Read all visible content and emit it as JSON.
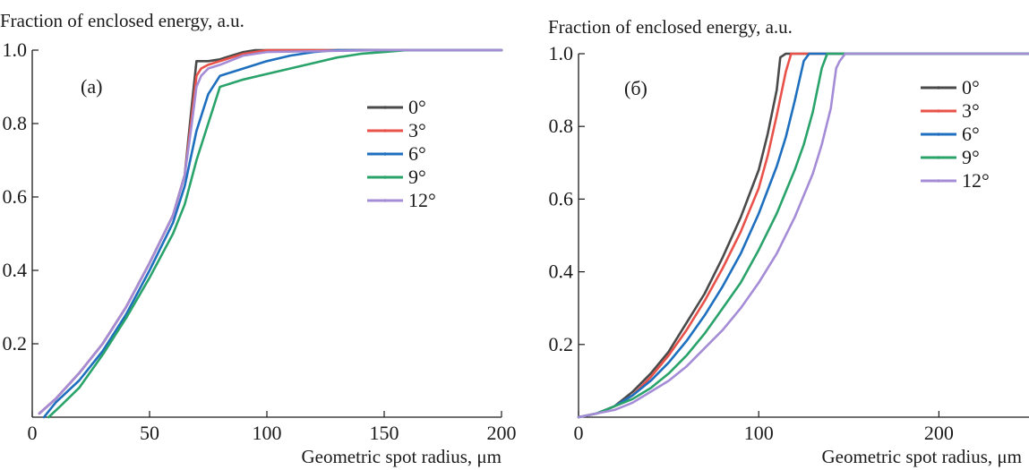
{
  "chart_data": [
    {
      "type": "line",
      "panel_label": "(a)",
      "ylabel": "Fraction of enclosed energy, a.u.",
      "xlabel": "Geometric spot radius, μm",
      "xlim": [
        0,
        200
      ],
      "ylim": [
        0,
        1.0
      ],
      "x_ticks": [
        0,
        50,
        100,
        150,
        200
      ],
      "x_tick_labels": [
        "0",
        "50",
        "100",
        "150",
        "200"
      ],
      "y_ticks": [
        0.2,
        0.4,
        0.6,
        0.8,
        1.0
      ],
      "y_tick_labels": [
        "0.2",
        "0.4",
        "0.6",
        "0.8",
        "1.0"
      ],
      "legend_position": "right",
      "series": [
        {
          "name": "0°",
          "color": "#4a4a4a",
          "x": [
            3,
            10,
            20,
            30,
            40,
            50,
            60,
            65,
            68,
            70,
            72,
            75,
            80,
            85,
            90,
            95,
            100,
            150,
            200
          ],
          "y": [
            0.01,
            0.05,
            0.12,
            0.2,
            0.3,
            0.42,
            0.55,
            0.66,
            0.85,
            0.97,
            0.97,
            0.97,
            0.975,
            0.985,
            0.995,
            1.0,
            1.0,
            1.0,
            1.0
          ]
        },
        {
          "name": "3°",
          "color": "#e8524a",
          "x": [
            3,
            10,
            20,
            30,
            40,
            50,
            60,
            65,
            68,
            70,
            72,
            75,
            80,
            90,
            100,
            150,
            200
          ],
          "y": [
            0.01,
            0.05,
            0.12,
            0.2,
            0.3,
            0.42,
            0.55,
            0.66,
            0.82,
            0.93,
            0.95,
            0.96,
            0.97,
            0.99,
            1.0,
            1.0,
            1.0
          ]
        },
        {
          "name": "6°",
          "color": "#1f6fbf",
          "x": [
            5,
            10,
            20,
            30,
            40,
            50,
            60,
            65,
            70,
            75,
            80,
            85,
            90,
            100,
            110,
            120,
            130,
            150,
            200
          ],
          "y": [
            0.0,
            0.04,
            0.1,
            0.18,
            0.28,
            0.4,
            0.53,
            0.63,
            0.78,
            0.88,
            0.93,
            0.94,
            0.95,
            0.97,
            0.985,
            0.995,
            1.0,
            1.0,
            1.0
          ]
        },
        {
          "name": "9°",
          "color": "#2aa36b",
          "x": [
            7,
            12,
            20,
            30,
            40,
            50,
            60,
            65,
            70,
            75,
            80,
            90,
            100,
            110,
            120,
            130,
            140,
            150,
            160,
            200
          ],
          "y": [
            0.0,
            0.03,
            0.08,
            0.17,
            0.27,
            0.38,
            0.5,
            0.58,
            0.7,
            0.8,
            0.9,
            0.92,
            0.935,
            0.95,
            0.965,
            0.98,
            0.99,
            0.995,
            1.0,
            1.0
          ]
        },
        {
          "name": "12°",
          "color": "#a58cd6",
          "x": [
            3,
            10,
            20,
            30,
            40,
            50,
            60,
            65,
            68,
            70,
            72,
            75,
            80,
            90,
            100,
            150,
            200
          ],
          "y": [
            0.01,
            0.05,
            0.12,
            0.2,
            0.3,
            0.42,
            0.55,
            0.66,
            0.8,
            0.9,
            0.93,
            0.95,
            0.96,
            0.985,
            0.995,
            1.0,
            1.0
          ]
        }
      ]
    },
    {
      "type": "line",
      "panel_label": "(б)",
      "ylabel": "Fraction of enclosed energy, a.u.",
      "xlabel": "Geometric spot radius, μm",
      "xlim": [
        0,
        250
      ],
      "ylim": [
        0,
        1.0
      ],
      "x_ticks": [
        0,
        100,
        200
      ],
      "x_tick_labels": [
        "0",
        "100",
        "200"
      ],
      "y_ticks": [
        0.2,
        0.4,
        0.6,
        0.8,
        1.0
      ],
      "y_tick_labels": [
        "0.2",
        "0.4",
        "0.6",
        "0.8",
        "1.0"
      ],
      "legend_position": "top-right",
      "series": [
        {
          "name": "0°",
          "color": "#4a4a4a",
          "x": [
            0,
            10,
            20,
            30,
            40,
            50,
            60,
            70,
            80,
            90,
            100,
            105,
            110,
            112,
            115,
            120,
            250
          ],
          "y": [
            0.0,
            0.01,
            0.03,
            0.07,
            0.12,
            0.18,
            0.26,
            0.34,
            0.44,
            0.55,
            0.68,
            0.78,
            0.9,
            0.99,
            1.0,
            1.0,
            1.0
          ]
        },
        {
          "name": "3°",
          "color": "#e8524a",
          "x": [
            0,
            10,
            20,
            30,
            40,
            50,
            60,
            70,
            80,
            90,
            100,
            105,
            110,
            115,
            118,
            120,
            250
          ],
          "y": [
            0.0,
            0.01,
            0.03,
            0.06,
            0.11,
            0.17,
            0.24,
            0.32,
            0.41,
            0.51,
            0.63,
            0.72,
            0.83,
            0.95,
            1.0,
            1.0,
            1.0
          ]
        },
        {
          "name": "6°",
          "color": "#1f6fbf",
          "x": [
            0,
            10,
            20,
            30,
            40,
            50,
            60,
            70,
            80,
            90,
            100,
            110,
            115,
            120,
            125,
            128,
            250
          ],
          "y": [
            0.0,
            0.01,
            0.03,
            0.06,
            0.1,
            0.15,
            0.21,
            0.28,
            0.36,
            0.45,
            0.56,
            0.69,
            0.77,
            0.87,
            0.98,
            1.0,
            1.0
          ]
        },
        {
          "name": "9°",
          "color": "#2aa36b",
          "x": [
            0,
            10,
            20,
            30,
            40,
            50,
            60,
            70,
            80,
            90,
            100,
            110,
            120,
            125,
            130,
            135,
            138,
            250
          ],
          "y": [
            0.0,
            0.01,
            0.03,
            0.05,
            0.08,
            0.12,
            0.17,
            0.23,
            0.3,
            0.37,
            0.46,
            0.56,
            0.68,
            0.75,
            0.84,
            0.96,
            1.0,
            1.0
          ]
        },
        {
          "name": "12°",
          "color": "#a58cd6",
          "x": [
            0,
            10,
            20,
            30,
            40,
            50,
            60,
            70,
            80,
            90,
            100,
            110,
            120,
            130,
            135,
            140,
            143,
            145,
            148,
            250
          ],
          "y": [
            0.0,
            0.01,
            0.02,
            0.04,
            0.07,
            0.1,
            0.14,
            0.19,
            0.24,
            0.3,
            0.37,
            0.45,
            0.55,
            0.67,
            0.75,
            0.85,
            0.96,
            0.98,
            1.0,
            1.0
          ]
        }
      ]
    }
  ]
}
